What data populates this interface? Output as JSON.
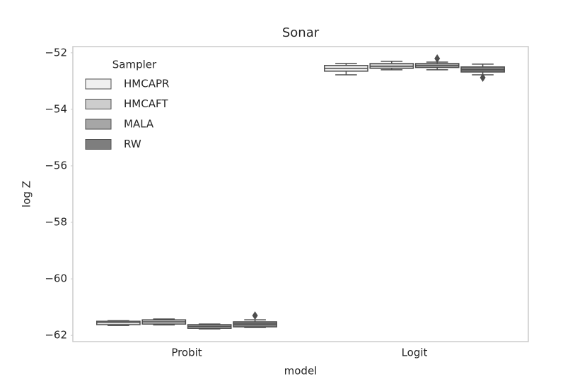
{
  "chart_data": {
    "type": "box",
    "title": "Sonar",
    "x_label": "model",
    "y_label": "log Z",
    "categories": [
      "Probit",
      "Logit"
    ],
    "legend_title": "Sampler",
    "legend_position": "upper left",
    "ylim": [
      -62.22,
      -51.78
    ],
    "yticks": [
      {
        "value": -62,
        "label": "−62"
      },
      {
        "value": -60,
        "label": "−60"
      },
      {
        "value": -58,
        "label": "−58"
      },
      {
        "value": -56,
        "label": "−56"
      },
      {
        "value": -54,
        "label": "−54"
      },
      {
        "value": -52,
        "label": "−52"
      }
    ],
    "series": [
      {
        "name": "HMCAPR",
        "color": "#f0f0f0",
        "values": [
          {
            "min": -61.65,
            "q1": -61.62,
            "median": -61.55,
            "q3": -61.5,
            "max": -61.48,
            "outliers": []
          },
          {
            "min": -52.78,
            "q1": -52.65,
            "median": -52.55,
            "q3": -52.45,
            "max": -52.38,
            "outliers": []
          }
        ]
      },
      {
        "name": "HMCAFT",
        "color": "#cdcdcd",
        "values": [
          {
            "min": -61.63,
            "q1": -61.6,
            "median": -61.52,
            "q3": -61.45,
            "max": -61.42,
            "outliers": []
          },
          {
            "min": -52.6,
            "q1": -52.55,
            "median": -52.48,
            "q3": -52.38,
            "max": -52.3,
            "outliers": []
          }
        ]
      },
      {
        "name": "MALA",
        "color": "#a6a6a6",
        "values": [
          {
            "min": -61.77,
            "q1": -61.75,
            "median": -61.68,
            "q3": -61.62,
            "max": -61.6,
            "outliers": []
          },
          {
            "min": -52.6,
            "q1": -52.52,
            "median": -52.45,
            "q3": -52.38,
            "max": -52.33,
            "outliers": [
              -52.2
            ]
          }
        ]
      },
      {
        "name": "RW",
        "color": "#7e7e7e",
        "values": [
          {
            "min": -61.72,
            "q1": -61.7,
            "median": -61.6,
            "q3": -61.52,
            "max": -61.45,
            "outliers": [
              -61.3
            ]
          },
          {
            "min": -52.78,
            "q1": -52.68,
            "median": -52.6,
            "q3": -52.5,
            "max": -52.4,
            "outliers": [
              -52.88
            ]
          }
        ]
      }
    ]
  }
}
